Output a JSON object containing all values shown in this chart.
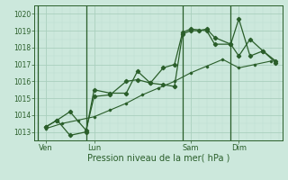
{
  "bg_color": "#cce8dc",
  "grid_major_color": "#aacfbe",
  "grid_minor_color": "#bcddd0",
  "line_color": "#2a5e2a",
  "marker_color": "#2a5e2a",
  "xlabel": "Pression niveau de la mer( hPa )",
  "ylim": [
    1012.5,
    1020.5
  ],
  "yticks": [
    1013,
    1014,
    1015,
    1016,
    1017,
    1018,
    1019,
    1020
  ],
  "xtick_labels": [
    "Ven",
    "Lun",
    "Sam",
    "Dim"
  ],
  "xtick_positions": [
    0.5,
    3.5,
    9.5,
    12.5
  ],
  "vline_positions": [
    0.0,
    3.0,
    9.0,
    12.0
  ],
  "xlim": [
    -0.2,
    15.2
  ],
  "series1_x": [
    0.5,
    1.2,
    2.0,
    3.0,
    3.5,
    4.5,
    5.5,
    6.2,
    7.0,
    7.8,
    8.5,
    9.0,
    9.5,
    10.0,
    10.5,
    11.0,
    12.0,
    12.5,
    13.2,
    14.0,
    14.8
  ],
  "series1_y": [
    1013.3,
    1013.7,
    1014.2,
    1013.1,
    1015.1,
    1015.2,
    1016.0,
    1016.1,
    1015.9,
    1015.8,
    1015.7,
    1018.8,
    1019.0,
    1019.0,
    1019.1,
    1018.6,
    1018.2,
    1017.5,
    1018.5,
    1017.8,
    1017.1
  ],
  "series2_x": [
    0.5,
    1.2,
    2.0,
    3.0,
    3.5,
    4.5,
    5.5,
    6.2,
    7.0,
    7.8,
    8.5,
    9.0,
    9.5,
    10.5,
    11.0,
    12.0,
    12.5,
    13.2,
    14.0,
    14.8
  ],
  "series2_y": [
    1013.3,
    1013.7,
    1012.8,
    1013.0,
    1015.5,
    1015.3,
    1015.3,
    1016.6,
    1015.9,
    1016.8,
    1017.0,
    1018.9,
    1019.1,
    1019.0,
    1018.2,
    1018.2,
    1019.7,
    1017.5,
    1017.8,
    1017.2
  ],
  "series3_x": [
    0.5,
    1.5,
    2.5,
    3.5,
    4.5,
    5.5,
    6.5,
    7.5,
    8.5,
    9.5,
    10.5,
    11.5,
    12.5,
    13.5,
    14.5
  ],
  "series3_y": [
    1013.2,
    1013.5,
    1013.7,
    1013.9,
    1014.3,
    1014.7,
    1015.2,
    1015.6,
    1016.0,
    1016.5,
    1016.9,
    1017.3,
    1016.8,
    1017.0,
    1017.2
  ]
}
